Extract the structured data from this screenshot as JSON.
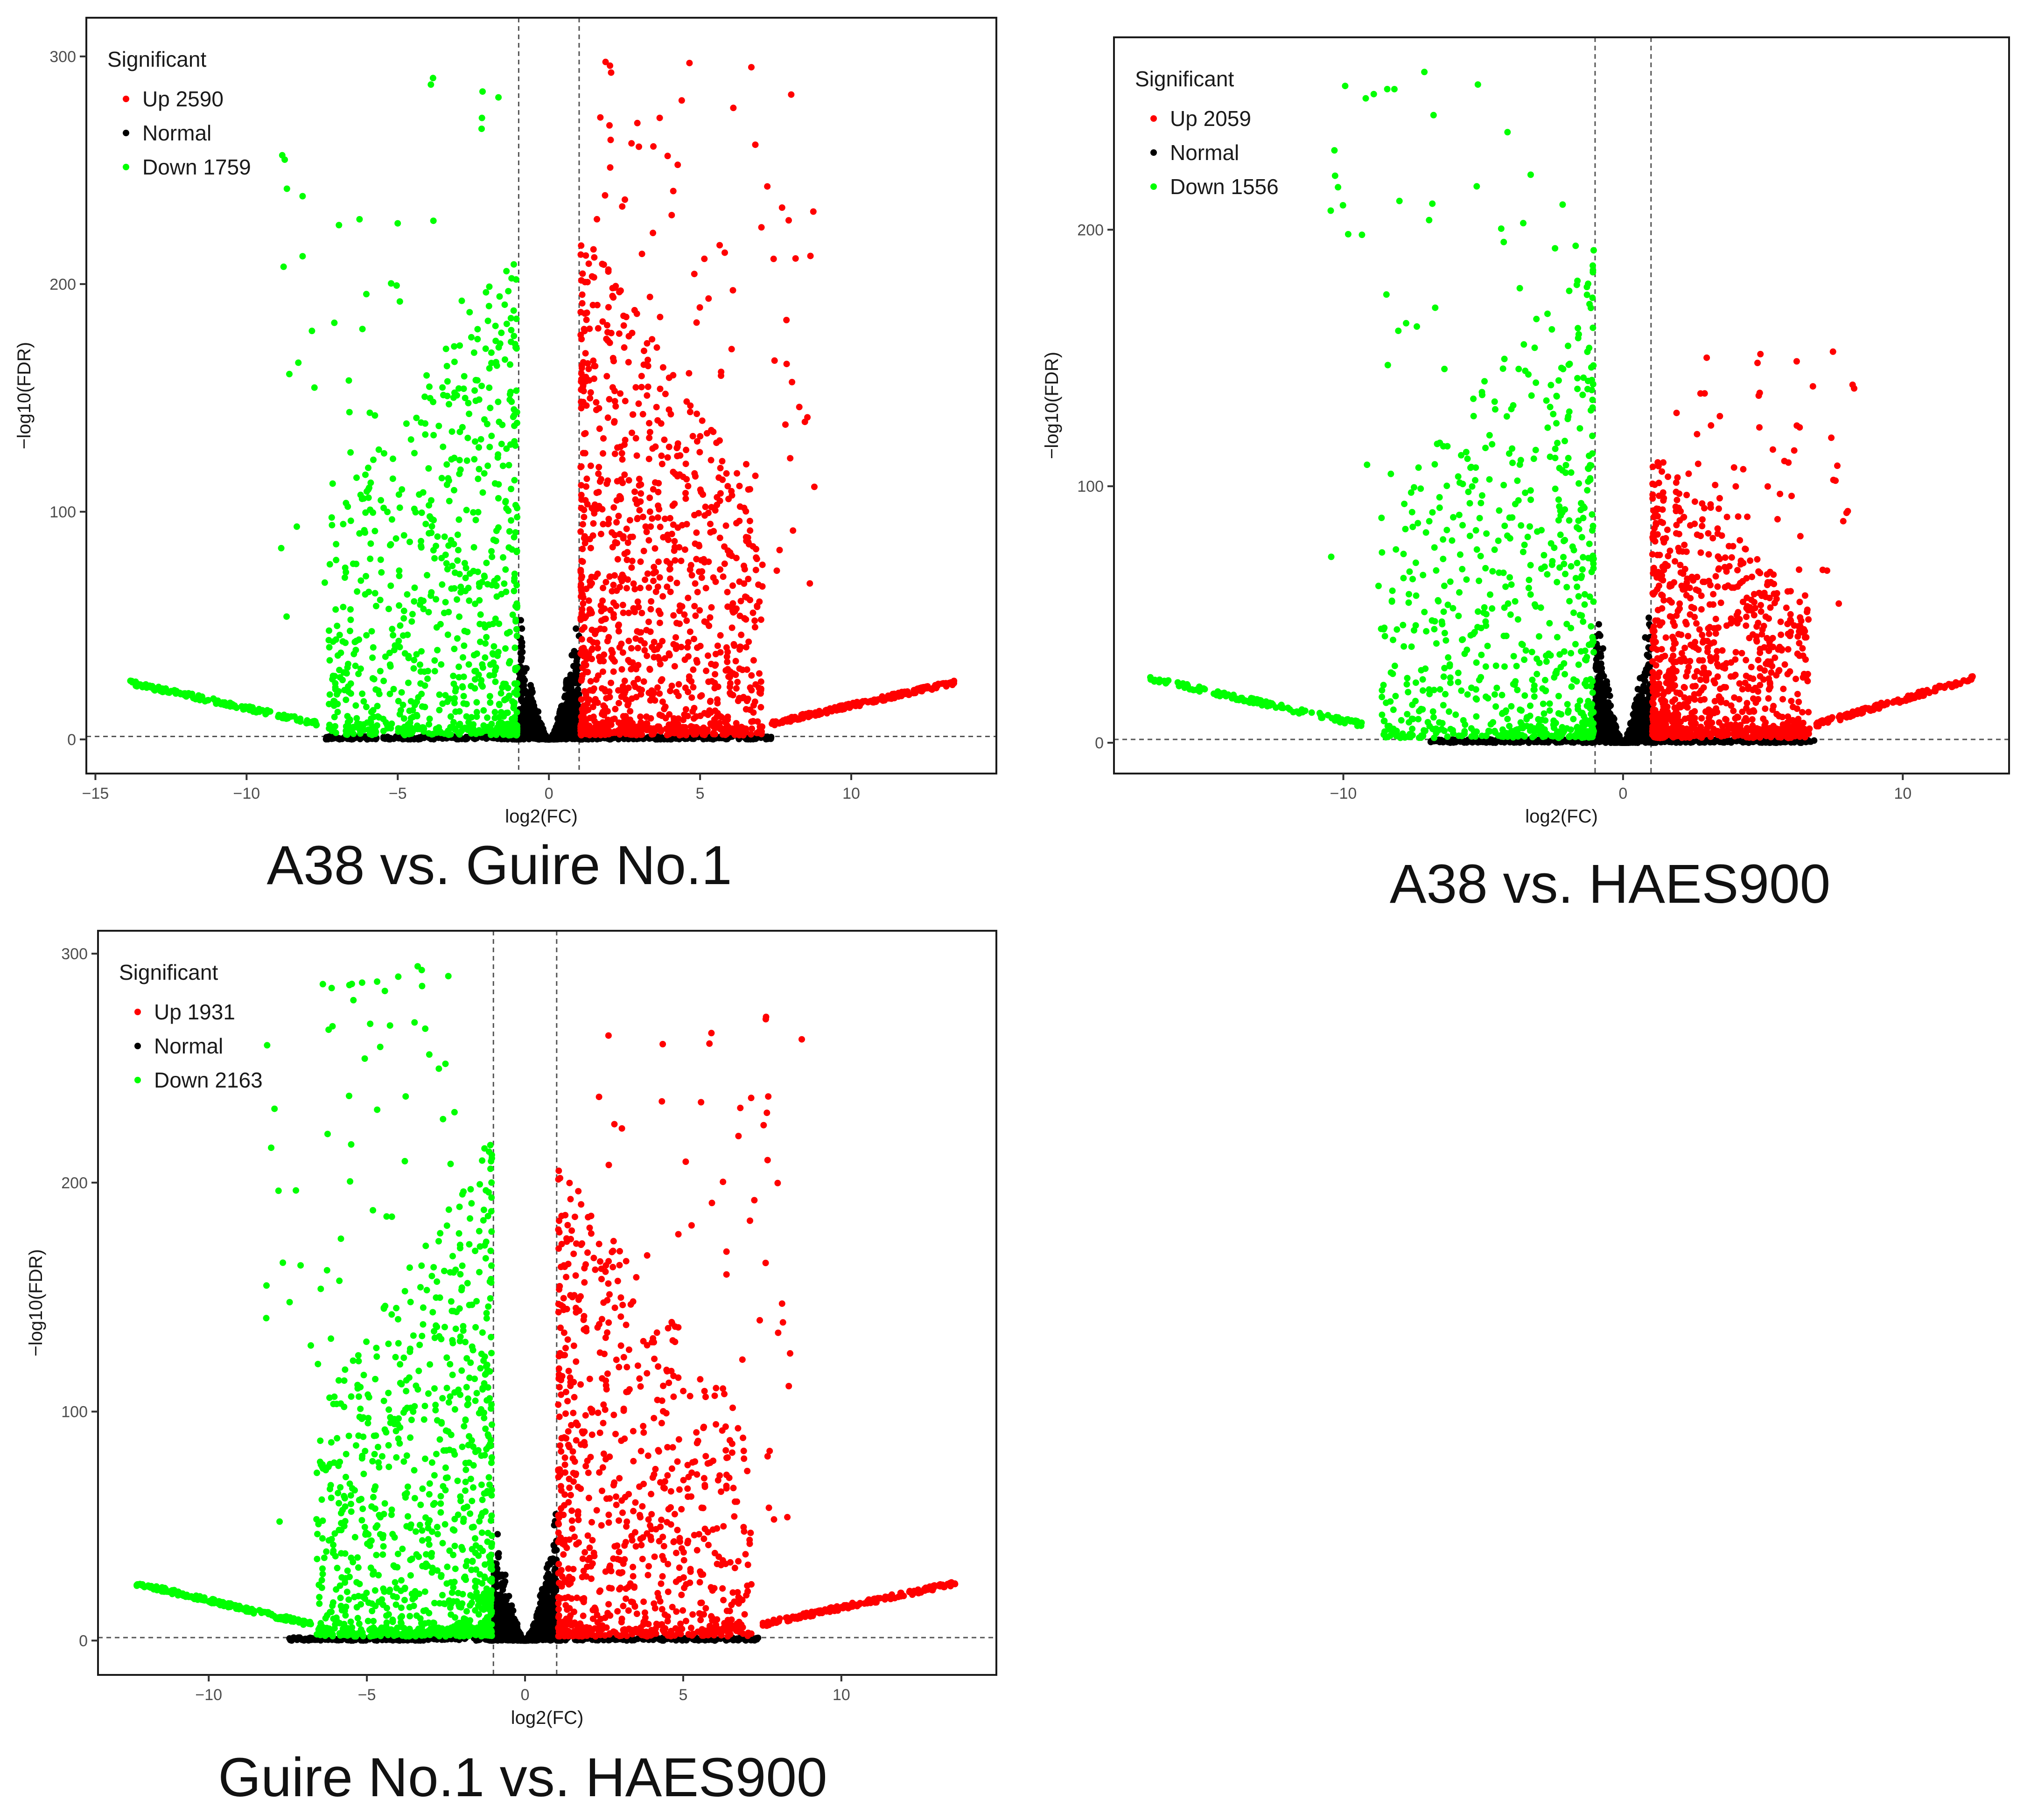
{
  "colors": {
    "up": "#ff0000",
    "normal": "#000000",
    "down": "#00ff00"
  },
  "chart_data": [
    {
      "type": "scatter",
      "caption": "A38 vs. Guire No.1",
      "xlabel": "log2(FC)",
      "ylabel": "−log10(FDR)",
      "xlim": [
        -15.3,
        14.8
      ],
      "ylim": [
        -15,
        317
      ],
      "xticks": [
        -15,
        -10,
        -5,
        0,
        5,
        10
      ],
      "xtick_labels": [
        "−15",
        "−10",
        "−5",
        "0",
        "5",
        "10"
      ],
      "yticks": [
        0,
        100,
        200,
        300
      ],
      "fc_threshold": [
        -1,
        1
      ],
      "fdr_threshold": 1.3,
      "legend": {
        "title": "Significant",
        "entries": [
          "Up 2590",
          "Normal",
          "Down 1759"
        ]
      },
      "counts": {
        "up": 2590,
        "down": 1759
      },
      "x_extent": [
        -13.9,
        13.4
      ],
      "max_y": {
        "up": 302,
        "down": 292
      },
      "seed": 11
    },
    {
      "type": "scatter",
      "caption": "A38 vs. HAES900",
      "xlabel": "log2(FC)",
      "ylabel": "−log10(FDR)",
      "xlim": [
        -18.2,
        13.8
      ],
      "ylim": [
        -12,
        275
      ],
      "xticks": [
        -10,
        0,
        10
      ],
      "xtick_labels": [
        "−10",
        "0",
        "10"
      ],
      "yticks": [
        0,
        100,
        200
      ],
      "fc_threshold": [
        -1,
        1
      ],
      "fdr_threshold": 1.3,
      "legend": {
        "title": "Significant",
        "entries": [
          "Up 2059",
          "Normal",
          "Down 1556"
        ]
      },
      "counts": {
        "up": 2059,
        "down": 1556
      },
      "x_extent": [
        -16.9,
        12.5
      ],
      "max_y": {
        "up": 153,
        "down": 263
      },
      "seed": 23
    },
    {
      "type": "scatter",
      "caption": "Guire No.1 vs. HAES900",
      "xlabel": "log2(FC)",
      "ylabel": "−log10(FDR)",
      "xlim": [
        -13.5,
        14.9
      ],
      "ylim": [
        -15,
        310
      ],
      "xticks": [
        -10,
        -5,
        0,
        5,
        10
      ],
      "xtick_labels": [
        "−10",
        "−5",
        "0",
        "5",
        "10"
      ],
      "yticks": [
        0,
        100,
        200,
        300
      ],
      "fc_threshold": [
        -1,
        1
      ],
      "fdr_threshold": 1.3,
      "legend": {
        "title": "Significant",
        "entries": [
          "Up 1931",
          "Normal",
          "Down 2163"
        ]
      },
      "counts": {
        "up": 1931,
        "down": 2163
      },
      "x_extent": [
        -12.3,
        13.6
      ],
      "max_y": {
        "up": 279,
        "down": 295
      },
      "seed": 37
    }
  ]
}
